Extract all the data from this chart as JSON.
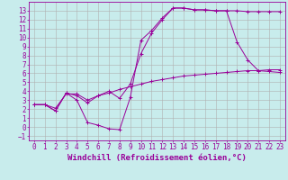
{
  "xlabel": "Windchill (Refroidissement éolien,°C)",
  "bg_color": "#c8ecec",
  "line_color": "#990099",
  "grid_color": "#b0b0b0",
  "xlim": [
    -0.5,
    23.5
  ],
  "ylim": [
    -1.5,
    14.0
  ],
  "xticks": [
    0,
    1,
    2,
    3,
    4,
    5,
    6,
    7,
    8,
    9,
    10,
    11,
    12,
    13,
    14,
    15,
    16,
    17,
    18,
    19,
    20,
    21,
    22,
    23
  ],
  "yticks": [
    -1,
    0,
    1,
    2,
    3,
    4,
    5,
    6,
    7,
    8,
    9,
    10,
    11,
    12,
    13
  ],
  "line1_x": [
    0,
    1,
    2,
    3,
    4,
    5,
    6,
    7,
    8,
    9,
    10,
    11,
    12,
    13,
    14,
    15,
    16,
    17,
    18,
    19,
    20,
    21,
    22,
    23
  ],
  "line1_y": [
    2.5,
    2.5,
    2.1,
    3.7,
    3.7,
    3.0,
    3.5,
    3.8,
    4.2,
    4.5,
    4.8,
    5.1,
    5.3,
    5.5,
    5.7,
    5.8,
    5.9,
    6.0,
    6.1,
    6.2,
    6.3,
    6.3,
    6.4,
    6.4
  ],
  "line2_x": [
    0,
    1,
    2,
    3,
    4,
    5,
    6,
    7,
    8,
    9,
    10,
    11,
    12,
    13,
    14,
    15,
    16,
    17,
    18,
    19,
    20,
    21,
    22,
    23
  ],
  "line2_y": [
    2.5,
    2.5,
    1.8,
    3.8,
    3.0,
    0.5,
    0.2,
    -0.2,
    -0.3,
    3.3,
    9.7,
    10.8,
    12.2,
    13.3,
    13.3,
    13.1,
    13.1,
    13.0,
    13.0,
    13.0,
    12.9,
    12.9,
    12.9,
    12.9
  ],
  "line3_x": [
    0,
    1,
    2,
    3,
    4,
    5,
    6,
    7,
    8,
    9,
    10,
    11,
    12,
    13,
    14,
    15,
    16,
    17,
    18,
    19,
    20,
    21,
    22,
    23
  ],
  "line3_y": [
    2.5,
    2.5,
    1.8,
    3.8,
    3.5,
    2.7,
    3.5,
    4.0,
    3.2,
    4.8,
    8.2,
    10.5,
    12.0,
    13.3,
    13.3,
    13.1,
    13.1,
    13.0,
    13.0,
    9.5,
    7.5,
    6.3,
    6.2,
    6.1
  ],
  "font_size": 6,
  "tick_font_size": 5.5,
  "xlabel_font_size": 6.5
}
